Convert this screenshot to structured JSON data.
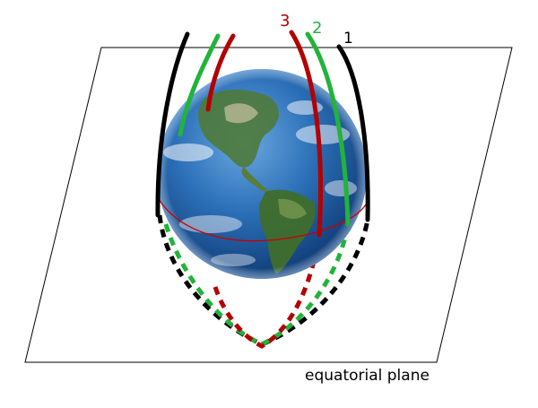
{
  "diagram": {
    "plane_label": "equatorial plane",
    "trajectories": [
      {
        "id": "1",
        "label": "1",
        "color": "#000000"
      },
      {
        "id": "2",
        "label": "2",
        "color": "#22b33a"
      },
      {
        "id": "3",
        "label": "3",
        "color": "#b30000"
      }
    ],
    "equator_color": "#cc0000",
    "plane_color": "#000000",
    "globe": {
      "ocean": "#1f5fa8",
      "land": "#4f7a3a"
    }
  }
}
